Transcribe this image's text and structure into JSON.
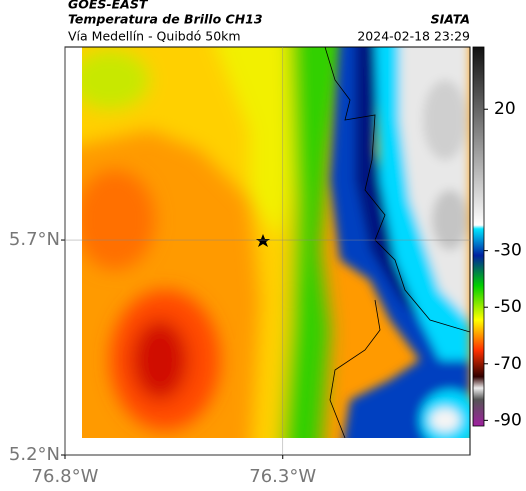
{
  "header": {
    "source": "GOES-EAST",
    "title": "Temperatura de Brillo CH13",
    "org": "SIATA",
    "subtitle": "Vía Medellín - Quibdó 50km",
    "timestamp": "2024-02-18 23:29"
  },
  "map": {
    "latlim": [
      5.2,
      6.149
    ],
    "lonlim": [
      -76.8,
      -75.87
    ],
    "lat_ticks": [
      {
        "value": 5.7,
        "label": "5.7°N"
      },
      {
        "value": 5.2,
        "label": "5.2°N"
      }
    ],
    "lon_ticks": [
      {
        "value": -76.8,
        "label": "76.8°W"
      },
      {
        "value": -76.3,
        "label": "76.3°W"
      }
    ],
    "grid": true
  },
  "colorbar": {
    "clim": [
      -92,
      42
    ],
    "ticks": [
      20,
      -30,
      -50,
      -70,
      -90
    ]
  }
}
